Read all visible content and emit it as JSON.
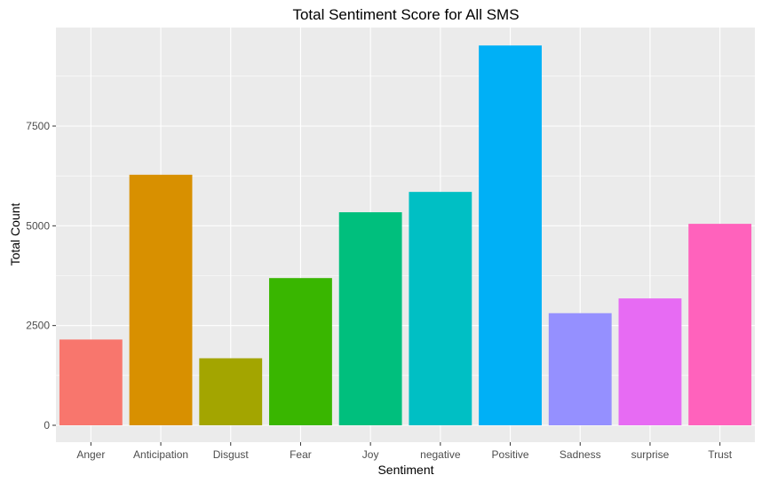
{
  "chart_data": {
    "type": "bar",
    "title": "Total Sentiment Score for All SMS",
    "xlabel": "Sentiment",
    "ylabel": "Total Count",
    "categories": [
      "Anger",
      "Anticipation",
      "Disgust",
      "Fear",
      "Joy",
      "negative",
      "Positive",
      "Sadness",
      "surprise",
      "Trust"
    ],
    "values": [
      2150,
      6280,
      1680,
      3690,
      5340,
      5850,
      9520,
      2810,
      3180,
      5050
    ],
    "colors": [
      "#F8766D",
      "#D89000",
      "#A3A500",
      "#39B600",
      "#00BF7D",
      "#00BFC4",
      "#00B0F6",
      "#9590FF",
      "#E76BF3",
      "#FF62BC"
    ],
    "yticks": [
      0,
      2500,
      5000,
      7500
    ],
    "ylim": [
      0,
      10000
    ],
    "grid": true,
    "legend": "none",
    "panel_background": "#EBEBEB"
  }
}
